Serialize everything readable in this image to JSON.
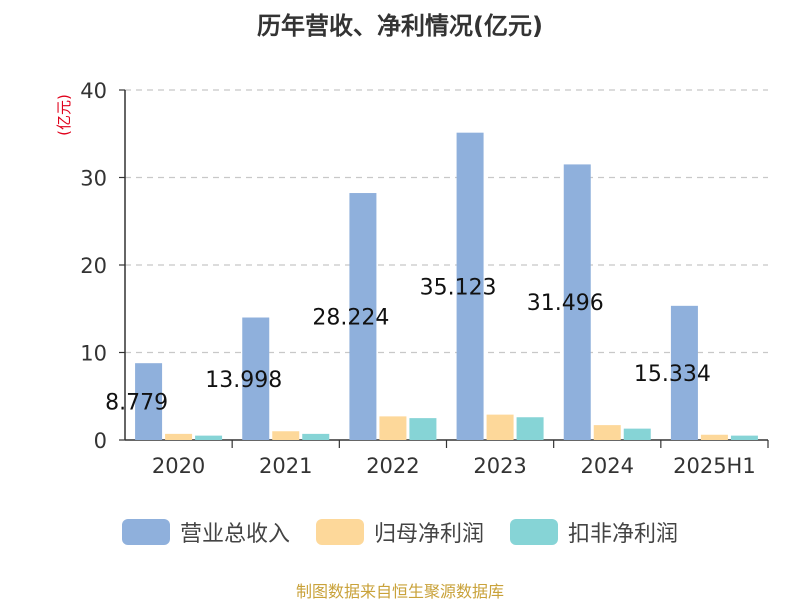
{
  "title": "历年营收、净利情况(亿元)",
  "unit_label": "(亿元)",
  "source": "制图数据来自恒生聚源数据库",
  "chart_data": {
    "type": "bar",
    "title": "历年营收、净利情况(亿元)",
    "ylabel": "(亿元)",
    "ylim": [
      0,
      40
    ],
    "yticks": [
      0,
      10,
      20,
      30,
      40
    ],
    "grid": true,
    "legend_position": "bottom",
    "categories": [
      "2020",
      "2021",
      "2022",
      "2023",
      "2024",
      "2025H1"
    ],
    "series": [
      {
        "name": "营业总收入",
        "color": "#8fb0dc",
        "values": [
          8.779,
          13.998,
          28.224,
          35.123,
          31.496,
          15.334
        ],
        "show_labels": true
      },
      {
        "name": "归母净利润",
        "color": "#fdd89a",
        "values": [
          0.7,
          1.0,
          2.7,
          2.9,
          1.7,
          0.6
        ],
        "show_labels": false
      },
      {
        "name": "扣非净利润",
        "color": "#86d4d6",
        "values": [
          0.5,
          0.7,
          2.5,
          2.6,
          1.3,
          0.5
        ],
        "show_labels": false
      }
    ],
    "data_labels": [
      "8.779",
      "13.998",
      "28.224",
      "35.123",
      "31.496",
      "15.334"
    ]
  }
}
